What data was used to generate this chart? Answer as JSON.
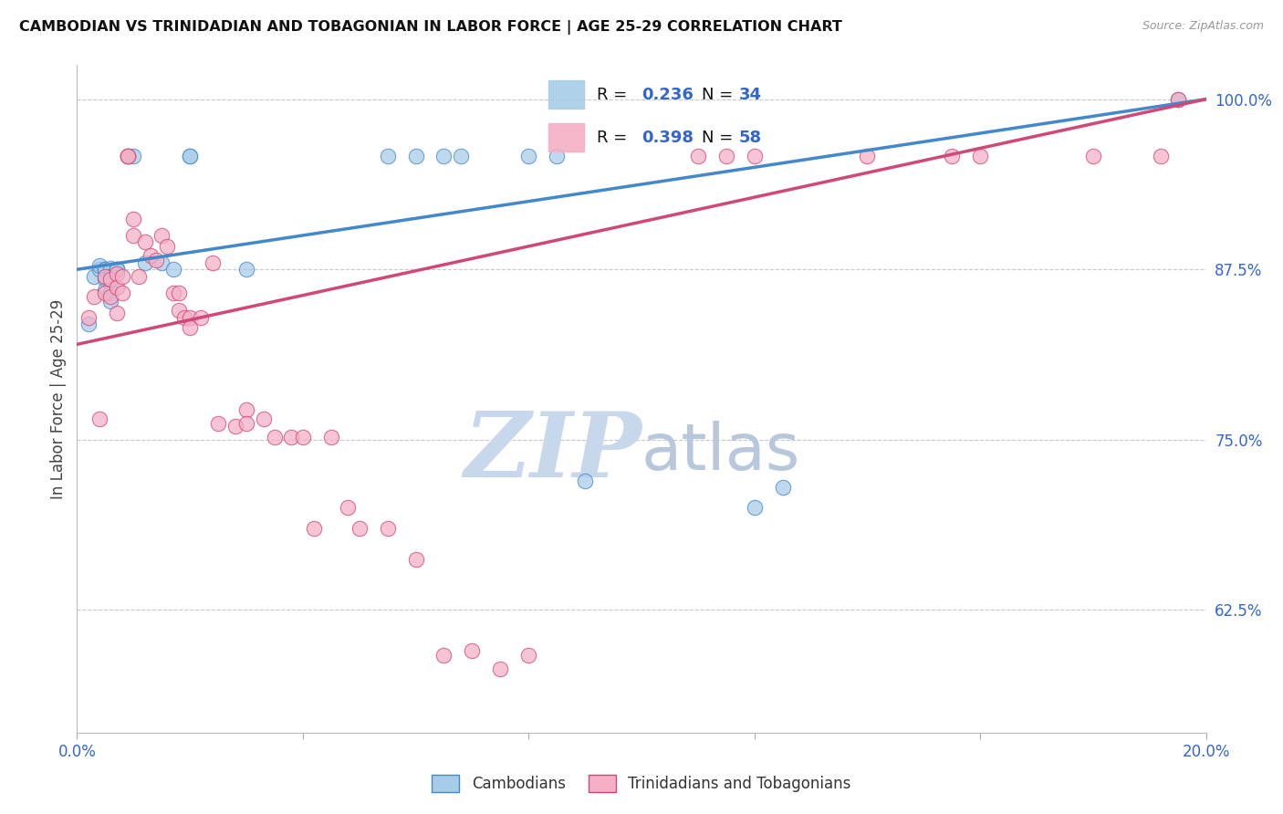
{
  "title": "CAMBODIAN VS TRINIDADIAN AND TOBAGONIAN IN LABOR FORCE | AGE 25-29 CORRELATION CHART",
  "source": "Source: ZipAtlas.com",
  "ylabel": "In Labor Force | Age 25-29",
  "xmin": 0.0,
  "xmax": 0.2,
  "ymin": 0.535,
  "ymax": 1.025,
  "xticks": [
    0.0,
    0.04,
    0.08,
    0.12,
    0.16,
    0.2
  ],
  "xtick_labels": [
    "0.0%",
    "",
    "",
    "",
    "",
    "20.0%"
  ],
  "ytick_positions": [
    0.625,
    0.75,
    0.875,
    1.0
  ],
  "ytick_labels": [
    "62.5%",
    "75.0%",
    "87.5%",
    "100.0%"
  ],
  "grid_color": "#c8c8c8",
  "background_color": "#ffffff",
  "blue_color": "#a8cce8",
  "pink_color": "#f4b0c4",
  "blue_line_color": "#4488cc",
  "pink_line_color": "#d04878",
  "R_blue": 0.236,
  "N_blue": 34,
  "R_pink": 0.398,
  "N_pink": 58,
  "legend_label_blue": "Cambodians",
  "legend_label_pink": "Trinidadians and Tobagonians",
  "watermark_zip": "ZIP",
  "watermark_atlas": "atlas",
  "watermark_color_zip": "#c8d8ec",
  "watermark_color_atlas": "#b8c8dc",
  "blue_trend_x": [
    0.0,
    0.2
  ],
  "blue_trend_y": [
    0.875,
    1.0
  ],
  "pink_trend_x": [
    0.0,
    0.2
  ],
  "pink_trend_y": [
    0.82,
    1.0
  ],
  "blue_x": [
    0.002,
    0.003,
    0.004,
    0.004,
    0.005,
    0.005,
    0.005,
    0.005,
    0.006,
    0.006,
    0.006,
    0.006,
    0.006,
    0.007,
    0.007,
    0.007,
    0.009,
    0.01,
    0.012,
    0.015,
    0.017,
    0.02,
    0.02,
    0.03,
    0.055,
    0.06,
    0.065,
    0.068,
    0.08,
    0.085,
    0.09,
    0.12,
    0.125,
    0.195
  ],
  "blue_y": [
    0.835,
    0.87,
    0.875,
    0.878,
    0.875,
    0.875,
    0.868,
    0.86,
    0.876,
    0.87,
    0.865,
    0.858,
    0.852,
    0.875,
    0.875,
    0.875,
    0.958,
    0.958,
    0.88,
    0.88,
    0.875,
    0.958,
    0.958,
    0.875,
    0.958,
    0.958,
    0.958,
    0.958,
    0.958,
    0.958,
    0.72,
    0.7,
    0.715,
    1.0
  ],
  "pink_x": [
    0.002,
    0.003,
    0.004,
    0.005,
    0.005,
    0.006,
    0.006,
    0.007,
    0.007,
    0.007,
    0.008,
    0.008,
    0.009,
    0.009,
    0.009,
    0.01,
    0.01,
    0.011,
    0.012,
    0.013,
    0.014,
    0.015,
    0.016,
    0.017,
    0.018,
    0.018,
    0.019,
    0.02,
    0.02,
    0.022,
    0.024,
    0.025,
    0.028,
    0.03,
    0.03,
    0.033,
    0.035,
    0.038,
    0.04,
    0.042,
    0.045,
    0.048,
    0.05,
    0.055,
    0.06,
    0.065,
    0.07,
    0.075,
    0.08,
    0.11,
    0.115,
    0.12,
    0.14,
    0.155,
    0.16,
    0.18,
    0.192,
    0.195
  ],
  "pink_y": [
    0.84,
    0.855,
    0.765,
    0.87,
    0.858,
    0.868,
    0.855,
    0.872,
    0.862,
    0.843,
    0.87,
    0.858,
    0.958,
    0.958,
    0.958,
    0.912,
    0.9,
    0.87,
    0.895,
    0.885,
    0.882,
    0.9,
    0.892,
    0.858,
    0.858,
    0.845,
    0.84,
    0.84,
    0.832,
    0.84,
    0.88,
    0.762,
    0.76,
    0.772,
    0.762,
    0.765,
    0.752,
    0.752,
    0.752,
    0.685,
    0.752,
    0.7,
    0.685,
    0.685,
    0.662,
    0.592,
    0.595,
    0.582,
    0.592,
    0.958,
    0.958,
    0.958,
    0.958,
    0.958,
    0.958,
    0.958,
    0.958,
    1.0
  ]
}
